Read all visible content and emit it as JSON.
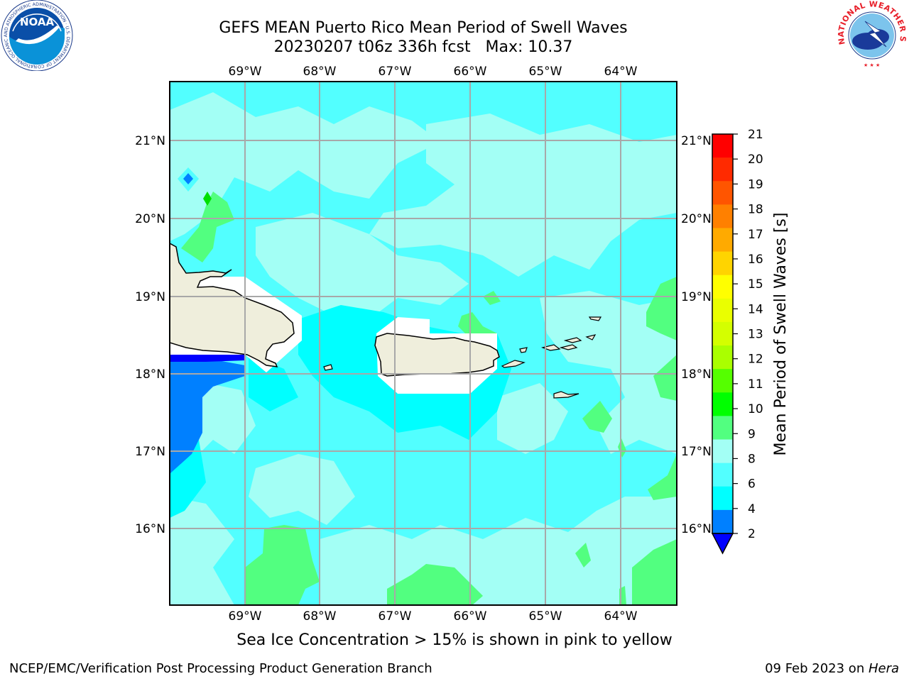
{
  "title": {
    "line1": "GEFS MEAN Puerto Rico Mean Period of Swell Waves",
    "line2": "20230207 t06z 336h fcst   Max: 10.37"
  },
  "map": {
    "lon_labels": [
      "69°W",
      "68°W",
      "67°W",
      "66°W",
      "65°W",
      "64°W"
    ],
    "lat_labels": [
      "21°N",
      "20°N",
      "19°N",
      "18°N",
      "17°N",
      "16°N"
    ],
    "colors": {
      "grid": "#a8a8a8",
      "land": "#efeedc",
      "ocean_light": "#a3fff5",
      "ocean_mid": "#52ffff",
      "ocean_cyan": "#00ffff",
      "green": "#52ff80",
      "blue_dark": "#0000ff",
      "blue_mid": "#0080ff"
    }
  },
  "colorbar": {
    "label": "Mean Period of Swell Waves [s]",
    "ticks": [
      "21",
      "20",
      "19",
      "18",
      "17",
      "16",
      "15",
      "14",
      "13",
      "12",
      "11",
      "10",
      "9",
      "8",
      "6",
      "4",
      "2"
    ],
    "colors": [
      "#ff0000",
      "#ff2a00",
      "#ff5500",
      "#ff8000",
      "#ffaa00",
      "#ffd400",
      "#ffff00",
      "#eaff00",
      "#d4ff00",
      "#aaff00",
      "#55ff00",
      "#00ff00",
      "#52ff80",
      "#a3fff5",
      "#52ffff",
      "#00ffff",
      "#0080ff"
    ],
    "extend_color": "#0000ff"
  },
  "footer": {
    "caption": "Sea Ice Concentration > 15% is shown in pink to yellow",
    "left": "NCEP/EMC/Verification Post Processing Product Generation Branch",
    "right_date": "09 Feb 2023 on ",
    "right_host": "Hera"
  },
  "logos": {
    "noaa": "NOAA",
    "noaa_ring": "NATIONAL OCEANIC AND ATMOSPHERIC ADMINISTRATION · U.S. DEPARTMENT OF COMMERCE",
    "nws_ring": "NATIONAL WEATHER SERVICE"
  }
}
